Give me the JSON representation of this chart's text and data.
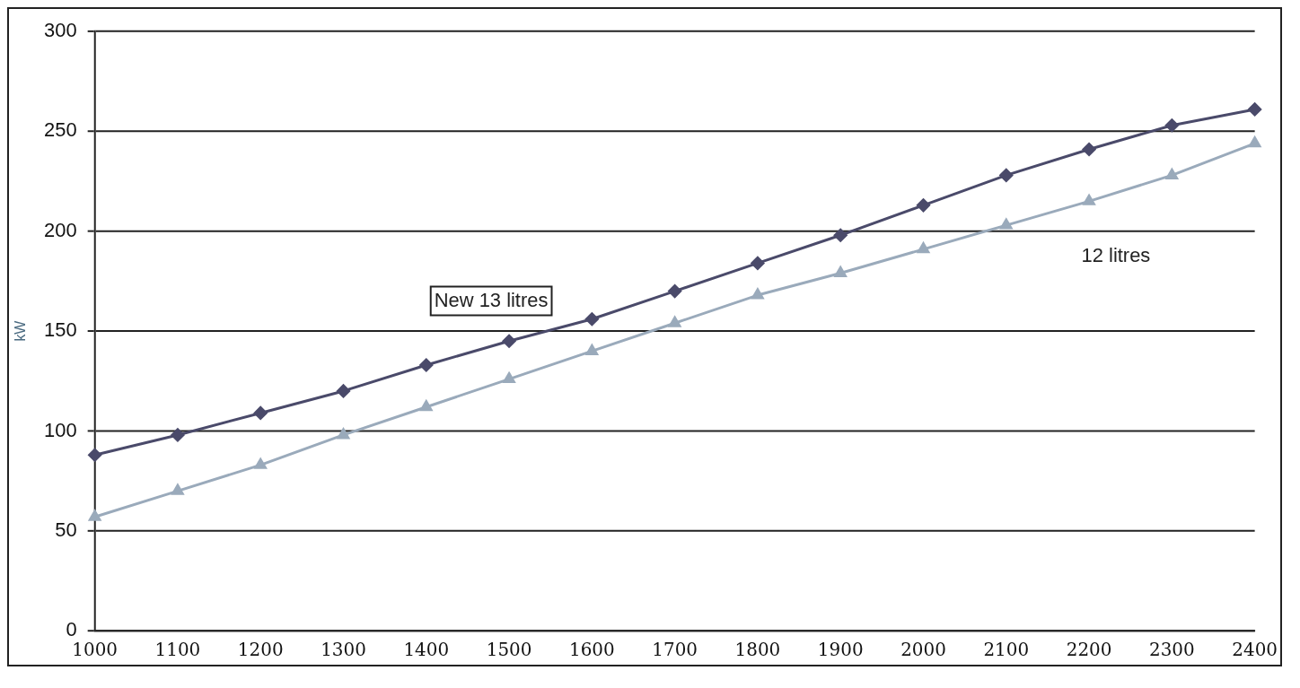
{
  "chart_data": {
    "type": "line",
    "ylabel": "kW",
    "categories": [
      "1000",
      "1100",
      "1200",
      "1300",
      "1400",
      "1500",
      "1600",
      "1700",
      "1800",
      "1900",
      "2000",
      "2100",
      "2200",
      "2300",
      "2400"
    ],
    "series": [
      {
        "name": "New 13 litres",
        "color": "#4a4a6a",
        "marker": "diamond",
        "values": [
          88,
          98,
          109,
          120,
          133,
          145,
          156,
          170,
          184,
          198,
          213,
          228,
          241,
          253,
          261
        ]
      },
      {
        "name": "12 litres",
        "color": "#9aaabb",
        "marker": "triangle",
        "values": [
          57,
          70,
          83,
          98,
          112,
          126,
          140,
          154,
          168,
          179,
          191,
          203,
          215,
          228,
          244
        ]
      }
    ],
    "ylim": [
      0,
      300
    ],
    "yticks": [
      0,
      50,
      100,
      150,
      200,
      250,
      300
    ],
    "grid": "y",
    "legend": false
  }
}
